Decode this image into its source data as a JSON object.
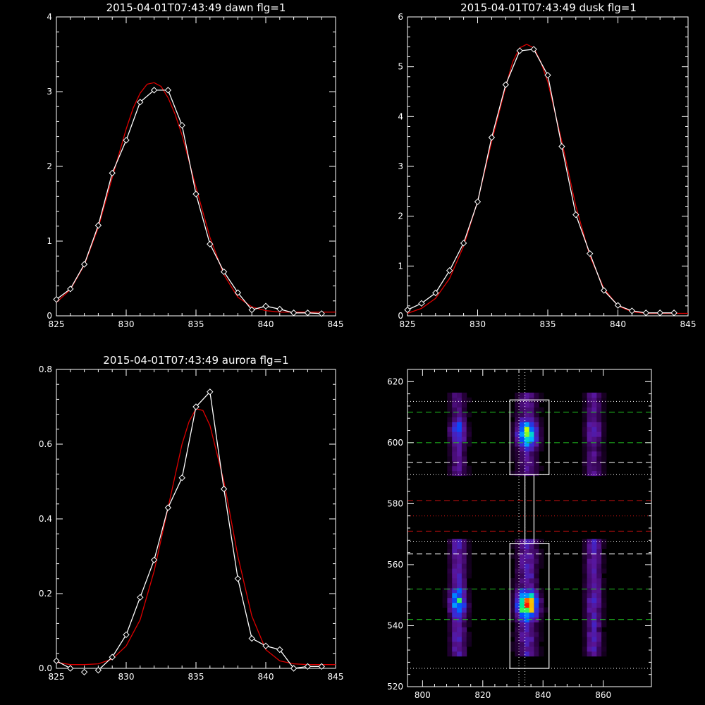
{
  "chart_data": [
    {
      "type": "line",
      "title": "2015-04-01T07:43:49 dawn flg=1",
      "xlabel": "",
      "ylabel": "",
      "xlim": [
        825,
        845
      ],
      "ylim": [
        0,
        4
      ],
      "xticks": [
        825,
        830,
        835,
        840,
        845
      ],
      "yticks": [
        0,
        1,
        2,
        3,
        4
      ],
      "series": [
        {
          "color": "#ffffff",
          "marker": "diamond",
          "x": [
            825,
            826,
            827,
            828,
            829,
            830,
            831,
            832,
            833,
            834,
            835,
            836,
            837,
            838,
            839,
            840,
            841,
            842,
            843,
            844
          ],
          "y": [
            0.22,
            0.36,
            0.69,
            1.21,
            1.91,
            2.35,
            2.86,
            3.02,
            3.02,
            2.55,
            1.63,
            0.96,
            0.59,
            0.31,
            0.08,
            0.13,
            0.09,
            0.04,
            0.04,
            0.03
          ]
        },
        {
          "color": "#dd0000",
          "marker": "none",
          "x": [
            825,
            826,
            827,
            828,
            829,
            830,
            830.5,
            831,
            831.5,
            832,
            832.5,
            833,
            833.5,
            834,
            835,
            836,
            837,
            838,
            839,
            840,
            841,
            842,
            843,
            844,
            845
          ],
          "y": [
            0.18,
            0.35,
            0.68,
            1.18,
            1.85,
            2.5,
            2.78,
            2.98,
            3.1,
            3.12,
            3.07,
            2.92,
            2.7,
            2.42,
            1.72,
            1.05,
            0.55,
            0.25,
            0.12,
            0.07,
            0.05,
            0.05,
            0.05,
            0.05,
            0.05
          ]
        }
      ]
    },
    {
      "type": "line",
      "title": "2015-04-01T07:43:49 dusk flg=1",
      "xlabel": "",
      "ylabel": "",
      "xlim": [
        825,
        845
      ],
      "ylim": [
        0,
        6
      ],
      "xticks": [
        825,
        830,
        835,
        840,
        845
      ],
      "yticks": [
        0,
        1,
        2,
        3,
        4,
        5,
        6
      ],
      "series": [
        {
          "color": "#ffffff",
          "marker": "diamond",
          "x": [
            825,
            826,
            827,
            828,
            829,
            830,
            831,
            832,
            833,
            834,
            835,
            836,
            837,
            838,
            839,
            840,
            841,
            842,
            843,
            844
          ],
          "y": [
            0.12,
            0.25,
            0.46,
            0.91,
            1.46,
            2.29,
            3.58,
            4.64,
            5.32,
            5.35,
            4.83,
            3.4,
            2.03,
            1.25,
            0.51,
            0.21,
            0.1,
            0.06,
            0.06,
            0.06
          ]
        },
        {
          "color": "#dd0000",
          "marker": "none",
          "x": [
            825,
            826,
            827,
            828,
            829,
            830,
            831,
            832,
            832.5,
            833,
            833.5,
            834,
            834.5,
            835,
            836,
            837,
            838,
            839,
            840,
            841,
            842,
            843,
            844,
            845
          ],
          "y": [
            0.05,
            0.15,
            0.35,
            0.75,
            1.4,
            2.3,
            3.5,
            4.6,
            5.1,
            5.38,
            5.45,
            5.38,
            5.1,
            4.7,
            3.5,
            2.2,
            1.2,
            0.55,
            0.2,
            0.08,
            0.05,
            0.05,
            0.05,
            0.05
          ]
        }
      ]
    },
    {
      "type": "line",
      "title": "2015-04-01T07:43:49 aurora flg=1",
      "xlabel": "",
      "ylabel": "",
      "xlim": [
        825,
        845
      ],
      "ylim": [
        0,
        0.8
      ],
      "xticks": [
        825,
        830,
        835,
        840,
        845
      ],
      "yticks": [
        0.0,
        0.2,
        0.4,
        0.6,
        0.8
      ],
      "ytick_labels": [
        "0.0",
        "0.2",
        "0.4",
        "0.6",
        "0.8"
      ],
      "series": [
        {
          "color": "#ffffff",
          "marker": "diamond",
          "x": [
            825,
            826,
            827,
            828,
            829,
            830,
            831,
            832,
            833,
            834,
            835,
            836,
            837,
            838,
            839,
            840,
            841,
            842,
            843,
            844
          ],
          "y": [
            0.02,
            0.0,
            -0.01,
            -0.005,
            0.03,
            0.09,
            0.19,
            0.29,
            0.43,
            0.51,
            0.7,
            0.74,
            0.48,
            0.24,
            0.08,
            0.06,
            0.05,
            0.0,
            0.005,
            0.005
          ]
        },
        {
          "color": "#dd0000",
          "marker": "none",
          "x": [
            825,
            826,
            827,
            828,
            829,
            830,
            831,
            832,
            833,
            834,
            834.5,
            835,
            835.5,
            836,
            837,
            838,
            839,
            840,
            841,
            842,
            843,
            844,
            845
          ],
          "y": [
            0.016,
            0.01,
            0.01,
            0.012,
            0.025,
            0.06,
            0.13,
            0.26,
            0.43,
            0.6,
            0.66,
            0.695,
            0.69,
            0.65,
            0.5,
            0.3,
            0.14,
            0.05,
            0.02,
            0.012,
            0.01,
            0.01,
            0.01
          ]
        }
      ]
    },
    {
      "type": "heatmap",
      "title": "",
      "xlim": [
        795,
        876
      ],
      "ylim": [
        520,
        624
      ],
      "xticks": [
        800,
        820,
        840,
        860
      ],
      "yticks": [
        520,
        540,
        560,
        580,
        600,
        620
      ],
      "colormap": "rainbow-on-black",
      "emission_columns": [
        {
          "x": 811,
          "sigma_x": 2.6,
          "blobs": [
            {
              "y": 603,
              "peak": 0.5
            },
            {
              "y": 547,
              "peak": 0.7
            }
          ]
        },
        {
          "x": 834,
          "sigma_x": 3.4,
          "blobs": [
            {
              "y": 602,
              "peak": 0.75
            },
            {
              "y": 546,
              "peak": 1.0
            }
          ]
        },
        {
          "x": 856,
          "sigma_x": 2.6,
          "blobs": [
            {
              "y": 603,
              "peak": 0.35
            },
            {
              "y": 547,
              "peak": 0.35
            }
          ]
        }
      ],
      "vertical_markers": [
        {
          "x": 832,
          "style": "dotted",
          "color": "#ffffff"
        },
        {
          "x": 834,
          "style": "dotted",
          "color": "#ffffff"
        }
      ],
      "horizontal_markers": [
        {
          "y": 613.5,
          "style": "dotted",
          "color": "#ffffff"
        },
        {
          "y": 610,
          "style": "dashed",
          "color": "#22cc22"
        },
        {
          "y": 600,
          "style": "dashed",
          "color": "#22cc22"
        },
        {
          "y": 593.5,
          "style": "dashed",
          "color": "#ffffff"
        },
        {
          "y": 589.5,
          "style": "dotted",
          "color": "#ffffff"
        },
        {
          "y": 581,
          "style": "dashed",
          "color": "#cc1111"
        },
        {
          "y": 576,
          "style": "dotted",
          "color": "#cc1111"
        },
        {
          "y": 571,
          "style": "dashed",
          "color": "#cc1111"
        },
        {
          "y": 567.5,
          "style": "dotted",
          "color": "#ffffff"
        },
        {
          "y": 563.5,
          "style": "dashed",
          "color": "#ffffff"
        },
        {
          "y": 552,
          "style": "dashed",
          "color": "#22cc22"
        },
        {
          "y": 542,
          "style": "dashed",
          "color": "#22cc22"
        },
        {
          "y": 526,
          "style": "dotted",
          "color": "#ffffff"
        }
      ],
      "boxes": [
        {
          "x0": 829,
          "x1": 842,
          "y0": 589.5,
          "y1": 614
        },
        {
          "x0": 829,
          "x1": 842,
          "y0": 526,
          "y1": 567
        },
        {
          "x0": 834,
          "x1": 837,
          "y0": 567,
          "y1": 589.5
        }
      ]
    }
  ]
}
